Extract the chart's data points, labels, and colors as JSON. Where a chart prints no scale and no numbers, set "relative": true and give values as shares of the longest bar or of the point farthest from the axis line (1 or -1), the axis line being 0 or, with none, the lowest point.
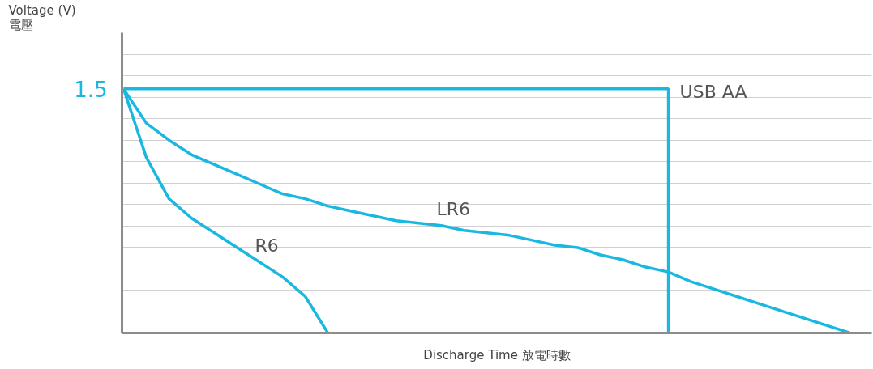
{
  "chart_data": {
    "type": "line",
    "relative": true,
    "xlabel": "Discharge Time 放電時數",
    "categories": [
      null,
      null,
      null,
      null,
      null,
      null,
      null,
      null,
      null,
      null,
      null,
      null,
      null,
      null,
      null,
      null,
      null,
      null,
      null,
      null,
      null,
      null,
      null,
      null,
      null,
      null,
      null,
      null,
      null,
      null,
      null,
      null,
      null
    ],
    "series": [
      {
        "name": "USB AA",
        "type": "step",
        "color": "#1ab8e0",
        "values": [
          1,
          1,
          1,
          1,
          1,
          1,
          1,
          1,
          1,
          1,
          1,
          1,
          1,
          1,
          1,
          1,
          1,
          1,
          1,
          1,
          1,
          1,
          1,
          1,
          0,
          null,
          null,
          null,
          null,
          null,
          null,
          null,
          null
        ]
      },
      {
        "name": "LR6",
        "color": "#1ab8e0",
        "values": [
          1,
          0.86,
          0.79,
          0.73,
          0.69,
          0.65,
          0.61,
          0.57,
          0.55,
          0.52,
          0.5,
          0.48,
          0.46,
          0.45,
          0.44,
          0.42,
          0.41,
          0.4,
          0.38,
          0.36,
          0.35,
          0.32,
          0.3,
          0.27,
          0.25,
          0.21,
          0.18,
          0.15,
          0.12,
          0.09,
          0.06,
          0.03,
          0
        ]
      },
      {
        "name": "R6",
        "color": "#1ab8e0",
        "values": [
          1,
          0.72,
          0.55,
          0.47,
          0.41,
          0.35,
          0.29,
          0.23,
          0.15,
          0,
          null,
          null,
          null,
          null,
          null,
          null,
          null,
          null,
          null,
          null,
          null,
          null,
          null,
          null,
          null,
          null,
          null,
          null,
          null,
          null,
          null,
          null,
          null
        ]
      }
    ],
    "annotations": [
      "1.5",
      "Voltage (V)\n電壓"
    ],
    "grid": "y",
    "marker": "none",
    "line_style": "solid"
  }
}
